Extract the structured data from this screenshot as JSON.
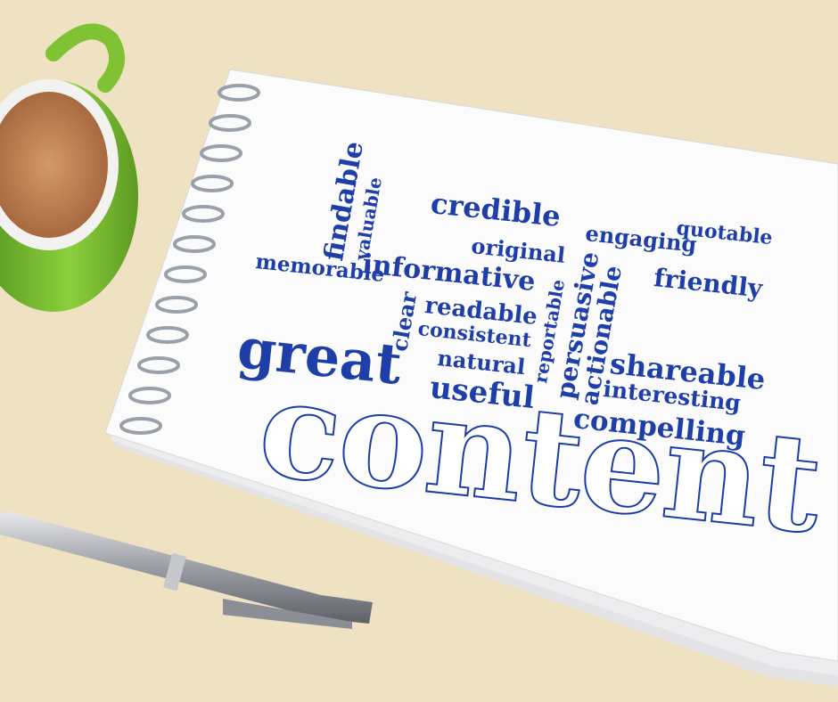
{
  "scene": {
    "description_icons": [
      "coffee-mug-icon",
      "notebook-icon",
      "pen-icon"
    ],
    "colors": {
      "table": "#efe2c2",
      "paper": "#fbfbfc",
      "ink": "#1f3fa8",
      "mug": "#7fc233",
      "coffee": "#c58a5a",
      "pen": "#b9bcc2"
    }
  },
  "words": {
    "findable": "findable",
    "valuable": "valuable",
    "credible": "credible",
    "engaging": "engaging",
    "quotable": "quotable",
    "original": "original",
    "memorable": "memorable",
    "informative": "informative",
    "friendly": "friendly",
    "readable": "readable",
    "clear": "clear",
    "consistent": "consistent",
    "reportable": "reportable",
    "persuasive": "persuasive",
    "actionable": "actionable",
    "great": "great",
    "natural": "natural",
    "shareable": "shareable",
    "useful": "useful",
    "interesting": "interesting",
    "compelling": "compelling",
    "content": "content"
  }
}
